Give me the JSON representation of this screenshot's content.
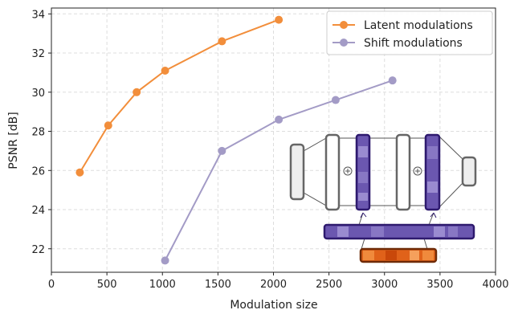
{
  "chart_data": {
    "type": "line",
    "xlabel": "Modulation size",
    "ylabel": "PSNR [dB]",
    "xlim": [
      0,
      4000
    ],
    "ylim": [
      20.8,
      34.3
    ],
    "xticks": [
      0,
      500,
      1000,
      1500,
      2000,
      2500,
      3000,
      3500,
      4000
    ],
    "yticks": [
      22,
      24,
      26,
      28,
      30,
      32,
      34
    ],
    "grid": true,
    "legend_position": "top-right",
    "series": [
      {
        "name": "Latent modulations",
        "color": "#f28e3b",
        "x": [
          256,
          512,
          768,
          1024,
          1536,
          2048
        ],
        "y": [
          25.9,
          28.3,
          30.0,
          31.1,
          32.6,
          33.7
        ]
      },
      {
        "name": "Shift modulations",
        "color": "#a39bc6",
        "x": [
          1024,
          1536,
          2048,
          2560,
          3072
        ],
        "y": [
          21.4,
          27.0,
          28.6,
          29.6,
          30.6
        ]
      }
    ]
  }
}
